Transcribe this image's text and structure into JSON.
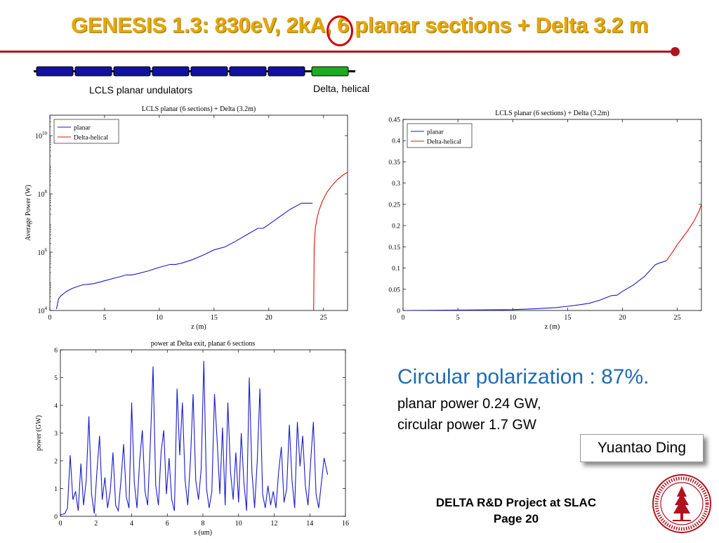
{
  "slide": {
    "title": "GENESIS 1.3: 830eV, 2kA, 6 planar sections + Delta 3.2 m",
    "undulator_label_planar": "LCLS planar undulators",
    "undulator_label_delta": "Delta, helical",
    "circular_polarization": "Circular polarization : 87%.",
    "planar_power": "planar power 0.24 GW,",
    "circular_power": "circular power 1.7 GW",
    "author": "Yuantao Ding",
    "footer_line1": "DELTA R&D Project at SLAC",
    "footer_line2": "Page 20",
    "colors": {
      "title": "#e6a700",
      "rule": "#b0121e",
      "planar": "#1a1acc",
      "delta": "#dd1111",
      "undulator_planar": "#12129a",
      "undulator_delta": "#1faa1f",
      "headline": "#1f6bb3"
    },
    "seal_icon": "stanford-seal-icon"
  },
  "chart_data": [
    {
      "type": "line",
      "title": "LCLS planar (6 sections) + Delta (3.2m)",
      "xlabel": "z (m)",
      "ylabel": "Average Power (W)",
      "xlim": [
        0,
        27.2
      ],
      "ylim_log10": [
        4,
        10.7
      ],
      "yscale": "log",
      "xticks": [
        "0",
        "5",
        "10",
        "15",
        "20",
        "25"
      ],
      "yticks": [
        {
          "base": "10",
          "exp": "4"
        },
        {
          "base": "10",
          "exp": "6"
        },
        {
          "base": "10",
          "exp": "8"
        },
        {
          "base": "10",
          "exp": "10"
        }
      ],
      "legend_position": "top-left",
      "series": [
        {
          "name": "planar",
          "x": [
            0.6,
            0.8,
            1.0,
            1.5,
            2.0,
            2.5,
            3.0,
            3.5,
            4.0,
            4.5,
            5.0,
            6.0,
            7.0,
            7.5,
            8.0,
            9.0,
            10.0,
            11.0,
            11.5,
            12.0,
            13.0,
            14.0,
            15.0,
            16.0,
            17.0,
            18.0,
            19.0,
            19.5,
            20.0,
            21.0,
            22.0,
            23.0,
            23.5,
            24.0
          ],
          "y_log10": [
            4.05,
            4.4,
            4.5,
            4.65,
            4.75,
            4.82,
            4.88,
            4.9,
            4.92,
            4.97,
            5.02,
            5.12,
            5.22,
            5.22,
            5.26,
            5.36,
            5.48,
            5.58,
            5.58,
            5.62,
            5.74,
            5.9,
            6.08,
            6.18,
            6.38,
            6.6,
            6.82,
            6.82,
            6.95,
            7.22,
            7.48,
            7.68,
            7.68,
            7.68
          ]
        },
        {
          "name": "Delta-helical",
          "x": [
            24.1,
            24.15,
            24.25,
            24.4,
            24.6,
            24.9,
            25.3,
            25.8,
            26.3,
            26.8,
            27.2
          ],
          "y_log10": [
            4.0,
            6.2,
            6.8,
            7.15,
            7.45,
            7.75,
            8.05,
            8.3,
            8.5,
            8.65,
            8.75
          ]
        }
      ]
    },
    {
      "type": "line",
      "title": "LCLS planar (6 sections) + Delta (3.2m)",
      "xlabel": "z (m)",
      "ylabel": "",
      "xlim": [
        0,
        27.2
      ],
      "ylim": [
        0,
        0.45
      ],
      "xticks": [
        "0",
        "5",
        "10",
        "15",
        "20",
        "25"
      ],
      "yticks": [
        "0",
        "0.05",
        "0.1",
        "0.15",
        "0.2",
        "0.25",
        "0.3",
        "0.35",
        "0.4",
        "0.45"
      ],
      "legend_position": "top-left",
      "series": [
        {
          "name": "planar",
          "x": [
            0,
            5,
            10,
            12,
            14,
            15,
            16,
            17,
            18,
            19,
            19.5,
            20,
            21,
            22,
            23,
            23.5,
            24
          ],
          "y": [
            0.0,
            0.001,
            0.002,
            0.004,
            0.007,
            0.01,
            0.013,
            0.017,
            0.025,
            0.035,
            0.036,
            0.045,
            0.06,
            0.08,
            0.108,
            0.113,
            0.117
          ]
        },
        {
          "name": "Delta-helical",
          "x": [
            24,
            24.5,
            25,
            25.5,
            26,
            26.5,
            27,
            27.2
          ],
          "y": [
            0.117,
            0.135,
            0.155,
            0.172,
            0.19,
            0.21,
            0.235,
            0.25
          ]
        }
      ]
    },
    {
      "type": "line",
      "title": "power at Delta exit, planar 6 sections",
      "xlabel": "s (um)",
      "ylabel": "power (GW)",
      "xlim": [
        0,
        16
      ],
      "ylim": [
        0,
        6
      ],
      "xticks": [
        "0",
        "2",
        "4",
        "6",
        "8",
        "10",
        "12",
        "14",
        "16"
      ],
      "yticks": [
        "0",
        "1",
        "2",
        "3",
        "4",
        "5",
        "6"
      ],
      "series": [
        {
          "name": "",
          "x": [
            0.0,
            0.25,
            0.4,
            0.55,
            0.7,
            0.85,
            1.0,
            1.15,
            1.3,
            1.45,
            1.6,
            1.75,
            1.9,
            2.05,
            2.2,
            2.35,
            2.5,
            2.65,
            2.8,
            2.95,
            3.1,
            3.25,
            3.4,
            3.55,
            3.7,
            3.85,
            4.0,
            4.15,
            4.3,
            4.45,
            4.6,
            4.75,
            4.9,
            5.05,
            5.2,
            5.35,
            5.5,
            5.65,
            5.8,
            5.95,
            6.1,
            6.25,
            6.4,
            6.55,
            6.7,
            6.85,
            7.0,
            7.15,
            7.3,
            7.45,
            7.6,
            7.75,
            7.9,
            8.05,
            8.2,
            8.35,
            8.5,
            8.65,
            8.8,
            8.95,
            9.1,
            9.25,
            9.4,
            9.55,
            9.7,
            9.85,
            10.0,
            10.15,
            10.3,
            10.45,
            10.6,
            10.75,
            10.9,
            11.05,
            11.2,
            11.35,
            11.5,
            11.65,
            11.8,
            11.95,
            12.1,
            12.25,
            12.4,
            12.55,
            12.7,
            12.85,
            13.0,
            13.15,
            13.3,
            13.45,
            13.6,
            13.75,
            13.9,
            14.05,
            14.2,
            14.35,
            14.5,
            14.65,
            14.8,
            15.0
          ],
          "y": [
            0.05,
            0.1,
            0.3,
            2.2,
            0.6,
            0.9,
            0.2,
            1.9,
            0.4,
            1.3,
            3.6,
            0.8,
            0.1,
            1.6,
            2.9,
            0.6,
            1.4,
            0.3,
            0.9,
            2.3,
            0.4,
            0.2,
            1.3,
            2.6,
            0.7,
            0.3,
            4.1,
            1.2,
            0.3,
            2.0,
            3.1,
            0.9,
            0.4,
            2.6,
            5.4,
            1.1,
            0.4,
            2.3,
            3.1,
            0.8,
            2.1,
            0.6,
            0.2,
            4.6,
            2.2,
            4.1,
            1.3,
            0.4,
            2.0,
            4.4,
            1.3,
            0.6,
            1.7,
            5.6,
            1.0,
            0.3,
            0.9,
            4.4,
            2.7,
            0.8,
            3.2,
            0.4,
            4.1,
            1.6,
            0.6,
            2.3,
            0.5,
            3.0,
            1.2,
            0.2,
            5.0,
            1.6,
            0.3,
            2.0,
            4.6,
            0.8,
            0.3,
            1.1,
            0.4,
            0.9,
            0.3,
            1.6,
            2.5,
            0.5,
            1.0,
            3.3,
            1.3,
            0.3,
            3.4,
            1.8,
            2.9,
            1.1,
            0.4,
            2.0,
            3.4,
            0.8,
            0.3,
            1.2,
            2.1,
            1.5
          ]
        }
      ]
    }
  ]
}
